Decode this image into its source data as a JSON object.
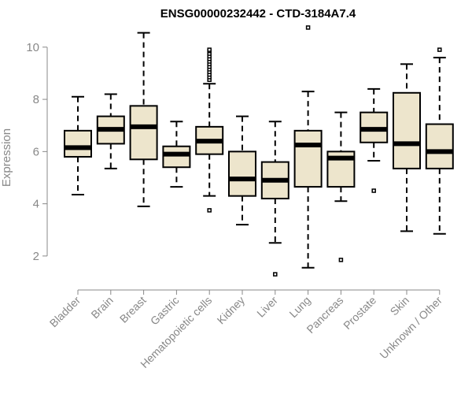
{
  "chart_data": {
    "type": "boxplot",
    "title": "ENSG00000232442 - CTD-3184A7.4",
    "ylabel": "Expression",
    "xlabel": "",
    "ylim": [
      1.0,
      10.9
    ],
    "yticks": [
      2,
      4,
      6,
      8,
      10
    ],
    "box_fill": "#ede5cc",
    "stroke": "#000000",
    "axis_color": "#888888",
    "categories": [
      "Bladder",
      "Brain",
      "Breast",
      "Gastric",
      "Hematopoietic cells",
      "Kidney",
      "Liver",
      "Lung",
      "Pancreas",
      "Prostate",
      "Skin",
      "Unknown / Other"
    ],
    "boxes": [
      {
        "whisker_low": 4.35,
        "q1": 5.8,
        "median": 6.15,
        "q3": 6.8,
        "whisker_high": 8.1,
        "outliers": []
      },
      {
        "whisker_low": 5.35,
        "q1": 6.3,
        "median": 6.85,
        "q3": 7.35,
        "whisker_high": 8.2,
        "outliers": []
      },
      {
        "whisker_low": 3.9,
        "q1": 5.7,
        "median": 6.95,
        "q3": 7.75,
        "whisker_high": 10.55,
        "outliers": []
      },
      {
        "whisker_low": 4.65,
        "q1": 5.4,
        "median": 5.9,
        "q3": 6.2,
        "whisker_high": 7.15,
        "outliers": []
      },
      {
        "whisker_low": 4.3,
        "q1": 5.9,
        "median": 6.4,
        "q3": 6.95,
        "whisker_high": 8.6,
        "outliers": [
          3.75,
          8.75,
          8.85,
          8.95,
          9.05,
          9.15,
          9.25,
          9.35,
          9.45,
          9.55,
          9.65,
          9.75,
          9.85,
          9.9
        ]
      },
      {
        "whisker_low": 3.2,
        "q1": 4.3,
        "median": 4.95,
        "q3": 6.0,
        "whisker_high": 7.35,
        "outliers": []
      },
      {
        "whisker_low": 2.5,
        "q1": 4.2,
        "median": 4.9,
        "q3": 5.6,
        "whisker_high": 7.15,
        "outliers": [
          1.3
        ]
      },
      {
        "whisker_low": 1.55,
        "q1": 4.65,
        "median": 6.25,
        "q3": 6.8,
        "whisker_high": 8.3,
        "outliers": [
          10.75
        ]
      },
      {
        "whisker_low": 4.1,
        "q1": 4.65,
        "median": 5.75,
        "q3": 6.0,
        "whisker_high": 7.5,
        "outliers": [
          1.85
        ]
      },
      {
        "whisker_low": 5.65,
        "q1": 6.35,
        "median": 6.85,
        "q3": 7.5,
        "whisker_high": 8.4,
        "outliers": [
          4.5
        ]
      },
      {
        "whisker_low": 2.95,
        "q1": 5.35,
        "median": 6.3,
        "q3": 8.25,
        "whisker_high": 9.35,
        "outliers": []
      },
      {
        "whisker_low": 2.85,
        "q1": 5.35,
        "median": 6.0,
        "q3": 7.05,
        "whisker_high": 9.6,
        "outliers": [
          9.9
        ]
      }
    ]
  }
}
